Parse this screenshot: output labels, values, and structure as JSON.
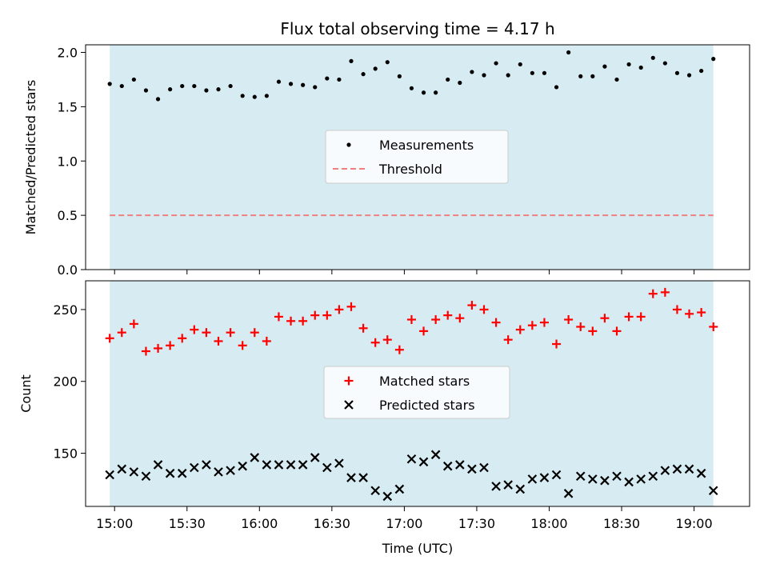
{
  "chart_data": [
    {
      "type": "scatter",
      "title": "Flux total observing time = 4.17 h",
      "xlabel": "",
      "ylabel": "Matched/Predicted stars",
      "ylim": [
        0,
        2.07
      ],
      "yticks": [
        "0.0",
        "0.5",
        "1.0",
        "1.5",
        "2.0"
      ],
      "x_ticks_visible": false,
      "legend_position": "center",
      "shaded_band": {
        "from": "14:58",
        "to": "19:08",
        "color": "#add8e6"
      },
      "series": [
        {
          "name": "Measurements",
          "marker": "dot",
          "color": "#000000",
          "x": [
            "14:58",
            "15:03",
            "15:08",
            "15:13",
            "15:18",
            "15:23",
            "15:28",
            "15:33",
            "15:38",
            "15:43",
            "15:48",
            "15:53",
            "15:58",
            "16:03",
            "16:08",
            "16:13",
            "16:18",
            "16:23",
            "16:28",
            "16:33",
            "16:38",
            "16:43",
            "16:48",
            "16:53",
            "16:58",
            "17:03",
            "17:08",
            "17:13",
            "17:18",
            "17:23",
            "17:28",
            "17:33",
            "17:38",
            "17:43",
            "17:48",
            "17:53",
            "17:58",
            "18:03",
            "18:08",
            "18:13",
            "18:18",
            "18:23",
            "18:28",
            "18:33",
            "18:38",
            "18:43",
            "18:48",
            "18:53",
            "18:58",
            "19:03",
            "19:08"
          ],
          "values": [
            1.71,
            1.69,
            1.75,
            1.65,
            1.57,
            1.66,
            1.69,
            1.69,
            1.65,
            1.66,
            1.69,
            1.6,
            1.59,
            1.6,
            1.73,
            1.71,
            1.7,
            1.68,
            1.76,
            1.75,
            1.92,
            1.8,
            1.85,
            1.91,
            1.78,
            1.67,
            1.63,
            1.63,
            1.75,
            1.72,
            1.82,
            1.79,
            1.9,
            1.79,
            1.89,
            1.81,
            1.81,
            1.68,
            2.0,
            1.78,
            1.78,
            1.87,
            1.75,
            1.89,
            1.86,
            1.95,
            1.9,
            1.81,
            1.79,
            1.83,
            1.94
          ]
        },
        {
          "name": "Threshold",
          "marker": "dashed-line",
          "color": "#ff8080",
          "x": [
            "14:58",
            "19:08"
          ],
          "values": [
            0.5,
            0.5
          ]
        }
      ]
    },
    {
      "type": "scatter",
      "title": "",
      "xlabel": "Time (UTC)",
      "ylabel": "Count",
      "ylim": [
        113,
        270
      ],
      "yticks": [
        "150",
        "200",
        "250"
      ],
      "xlim": [
        "14:48",
        "19:23"
      ],
      "xticks": [
        "15:00",
        "15:30",
        "16:00",
        "16:30",
        "17:00",
        "17:30",
        "18:00",
        "18:30",
        "19:00"
      ],
      "legend_position": "center",
      "shaded_band": {
        "from": "14:58",
        "to": "19:08",
        "color": "#add8e6"
      },
      "series": [
        {
          "name": "Matched stars",
          "marker": "plus",
          "color": "#ff0000",
          "x": [
            "14:58",
            "15:03",
            "15:08",
            "15:13",
            "15:18",
            "15:23",
            "15:28",
            "15:33",
            "15:38",
            "15:43",
            "15:48",
            "15:53",
            "15:58",
            "16:03",
            "16:08",
            "16:13",
            "16:18",
            "16:23",
            "16:28",
            "16:33",
            "16:38",
            "16:43",
            "16:48",
            "16:53",
            "16:58",
            "17:03",
            "17:08",
            "17:13",
            "17:18",
            "17:23",
            "17:28",
            "17:33",
            "17:38",
            "17:43",
            "17:48",
            "17:53",
            "17:58",
            "18:03",
            "18:08",
            "18:13",
            "18:18",
            "18:23",
            "18:28",
            "18:33",
            "18:38",
            "18:43",
            "18:48",
            "18:53",
            "18:58",
            "19:03",
            "19:08"
          ],
          "values": [
            230,
            234,
            240,
            221,
            223,
            225,
            230,
            236,
            234,
            228,
            234,
            225,
            234,
            228,
            245,
            242,
            242,
            246,
            246,
            250,
            252,
            237,
            227,
            229,
            222,
            243,
            235,
            243,
            246,
            244,
            253,
            250,
            241,
            229,
            236,
            239,
            241,
            226,
            243,
            238,
            235,
            244,
            235,
            245,
            245,
            261,
            262,
            250,
            247,
            248,
            238
          ]
        },
        {
          "name": "Predicted stars",
          "marker": "x",
          "color": "#000000",
          "x": [
            "14:58",
            "15:03",
            "15:08",
            "15:13",
            "15:18",
            "15:23",
            "15:28",
            "15:33",
            "15:38",
            "15:43",
            "15:48",
            "15:53",
            "15:58",
            "16:03",
            "16:08",
            "16:13",
            "16:18",
            "16:23",
            "16:28",
            "16:33",
            "16:38",
            "16:43",
            "16:48",
            "16:53",
            "16:58",
            "17:03",
            "17:08",
            "17:13",
            "17:18",
            "17:23",
            "17:28",
            "17:33",
            "17:38",
            "17:43",
            "17:48",
            "17:53",
            "17:58",
            "18:03",
            "18:08",
            "18:13",
            "18:18",
            "18:23",
            "18:28",
            "18:33",
            "18:38",
            "18:43",
            "18:48",
            "18:53",
            "18:58",
            "19:03",
            "19:08"
          ],
          "values": [
            135,
            139,
            137,
            134,
            142,
            136,
            136,
            140,
            142,
            137,
            138,
            141,
            147,
            142,
            142,
            142,
            142,
            147,
            140,
            143,
            133,
            133,
            124,
            120,
            125,
            146,
            144,
            149,
            141,
            142,
            139,
            140,
            127,
            128,
            125,
            132,
            133,
            135,
            122,
            134,
            132,
            131,
            134,
            130,
            132,
            134,
            138,
            139,
            139,
            136,
            124
          ]
        }
      ]
    }
  ]
}
